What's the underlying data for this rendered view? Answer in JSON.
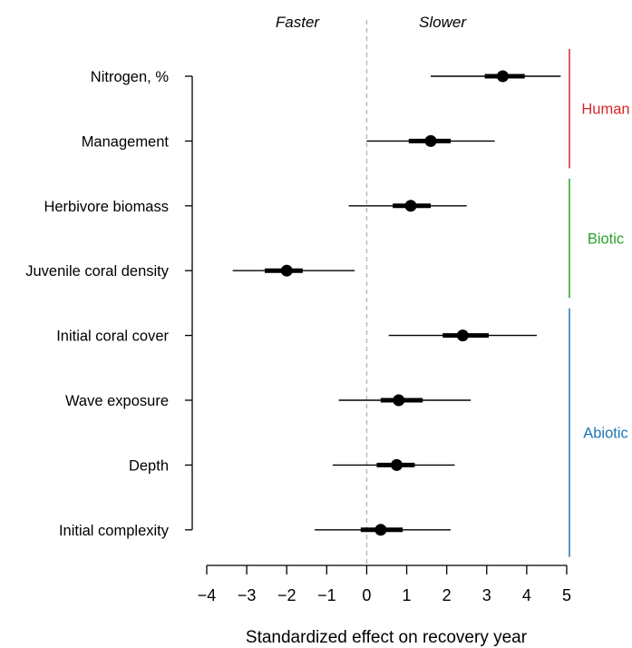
{
  "chart_data": {
    "type": "forest",
    "xlabel": "Standardized effect on recovery year",
    "xlim": [
      -4,
      5
    ],
    "xticks": [
      -4,
      -3,
      -2,
      -1,
      0,
      1,
      2,
      3,
      4,
      5
    ],
    "xtick_labels": [
      "−4",
      "−3",
      "−2",
      "−1",
      "0",
      "1",
      "2",
      "3",
      "4",
      "5"
    ],
    "zero_line": true,
    "direction_labels": {
      "left": "Faster",
      "right": "Slower"
    },
    "rows": [
      {
        "label": "Nitrogen, %",
        "mean": 3.4,
        "ci50": [
          2.95,
          3.95
        ],
        "ci95": [
          1.6,
          4.85
        ]
      },
      {
        "label": "Management",
        "mean": 1.6,
        "ci50": [
          1.05,
          2.1
        ],
        "ci95": [
          0.0,
          3.2
        ]
      },
      {
        "label": "Herbivore biomass",
        "mean": 1.1,
        "ci50": [
          0.65,
          1.6
        ],
        "ci95": [
          -0.45,
          2.5
        ]
      },
      {
        "label": "Juvenile coral density",
        "mean": -2.0,
        "ci50": [
          -2.55,
          -1.6
        ],
        "ci95": [
          -3.35,
          -0.3
        ]
      },
      {
        "label": "Initial coral cover",
        "mean": 2.4,
        "ci50": [
          1.9,
          3.05
        ],
        "ci95": [
          0.55,
          4.25
        ]
      },
      {
        "label": "Wave exposure",
        "mean": 0.8,
        "ci50": [
          0.35,
          1.4
        ],
        "ci95": [
          -0.7,
          2.6
        ]
      },
      {
        "label": "Depth",
        "mean": 0.75,
        "ci50": [
          0.25,
          1.2
        ],
        "ci95": [
          -0.85,
          2.2
        ]
      },
      {
        "label": "Initial complexity",
        "mean": 0.35,
        "ci50": [
          -0.15,
          0.9
        ],
        "ci95": [
          -1.3,
          2.1
        ]
      }
    ],
    "groups": [
      {
        "name": "Human",
        "color": "#d62728",
        "first_row": 0,
        "last_row": 1
      },
      {
        "name": "Biotic",
        "color": "#2ca02c",
        "first_row": 2,
        "last_row": 3
      },
      {
        "name": "Abiotic",
        "color": "#1f77b4",
        "first_row": 4,
        "last_row": 7
      }
    ]
  }
}
